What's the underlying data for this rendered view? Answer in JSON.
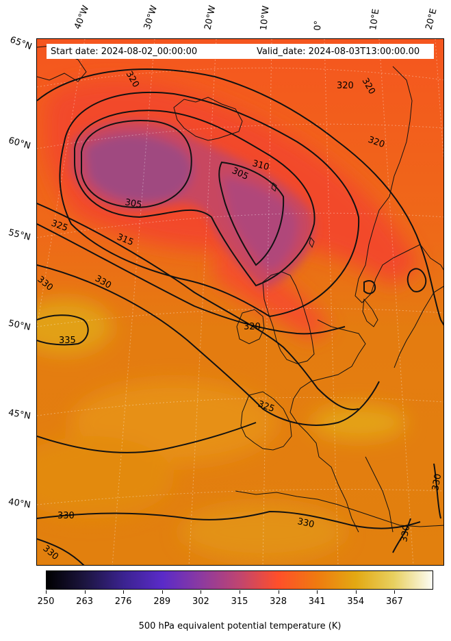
{
  "header": {
    "start_date": "Start date: 2024-08-02_00:00:00",
    "valid_date": "Valid_date: 2024-08-03T13:00:00.00"
  },
  "longitude_labels": [
    "40°W",
    "30°W",
    "20°W",
    "10°W",
    "0°",
    "10°E",
    "20°E"
  ],
  "latitude_labels": [
    "65°N",
    "60°N",
    "55°N",
    "50°N",
    "45°N",
    "40°N"
  ],
  "contour_labels": [
    "320",
    "320",
    "320",
    "320",
    "310",
    "305",
    "305",
    "325",
    "315",
    "330",
    "330",
    "335",
    "320",
    "325",
    "330",
    "330",
    "330",
    "330",
    "330",
    "320"
  ],
  "colorbar": {
    "ticks": [
      "250",
      "263",
      "276",
      "289",
      "302",
      "315",
      "328",
      "341",
      "354",
      "367"
    ],
    "title": "500 hPa equivalent potential temperature (K)",
    "colors": [
      "#000000",
      "#1c1540",
      "#3b2390",
      "#5a2bc8",
      "#8c3aa0",
      "#c04570",
      "#ff4f2a",
      "#ef7a10",
      "#e3a812",
      "#e8d060",
      "#fcfcf4"
    ]
  },
  "field_colors": {
    "cold_core": "#a04880",
    "cool": "#e04a38",
    "mid": "#f25a20",
    "warm": "#e47810",
    "hot": "#e2a012"
  }
}
